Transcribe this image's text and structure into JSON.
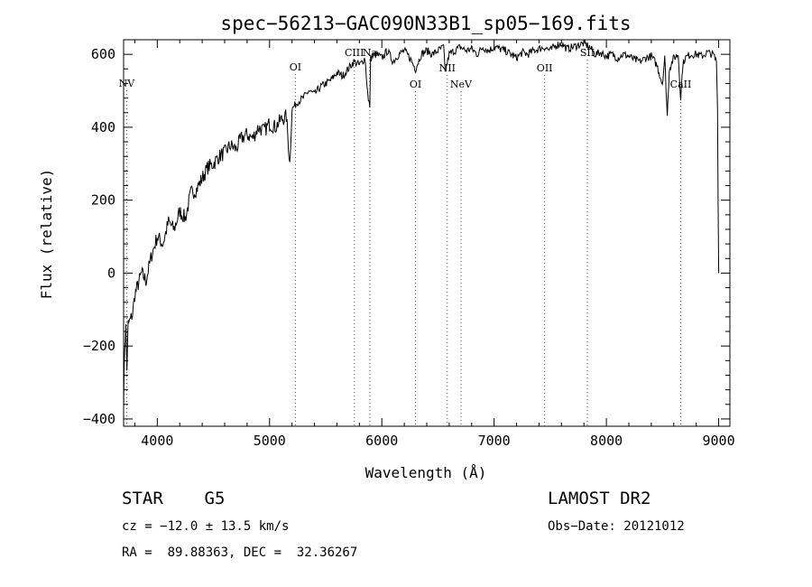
{
  "chart_data": {
    "type": "line",
    "title": "spec−56213−GAC090N33B1_sp05−169.fits",
    "xlabel": "Wavelength (Å)",
    "ylabel": "Flux (relative)",
    "xlim": [
      3700,
      9100
    ],
    "ylim": [
      -420,
      640
    ],
    "x_ticks": [
      4000,
      5000,
      6000,
      7000,
      8000,
      9000
    ],
    "y_ticks": [
      -400,
      -200,
      0,
      200,
      400,
      600
    ],
    "y_tick_labels": [
      "−400",
      "−200",
      "0",
      "200",
      "400",
      "600"
    ],
    "grid": false,
    "series": [
      {
        "x": [
          3700,
          3710,
          3720,
          3730,
          3740,
          3760,
          3780,
          3800,
          3830,
          3860,
          3900,
          3950,
          4000,
          4050,
          4100,
          4150,
          4200,
          4250,
          4300,
          4350,
          4400,
          4450,
          4500,
          4550,
          4600,
          4650,
          4700,
          4750,
          4800,
          4850,
          4900,
          4950,
          5000,
          5050,
          5100,
          5150,
          5180,
          5200,
          5250,
          5300,
          5350,
          5400,
          5450,
          5500,
          5550,
          5600,
          5650,
          5700,
          5750,
          5800,
          5850,
          5880,
          5893,
          5900,
          5950,
          6000,
          6050,
          6100,
          6150,
          6200,
          6250,
          6300,
          6350,
          6400,
          6450,
          6500,
          6550,
          6563,
          6600,
          6650,
          6700,
          6750,
          6800,
          6850,
          6900,
          6950,
          7000,
          7050,
          7100,
          7150,
          7200,
          7250,
          7300,
          7350,
          7400,
          7450,
          7500,
          7550,
          7600,
          7650,
          7700,
          7750,
          7800,
          7850,
          7900,
          7950,
          8000,
          8050,
          8100,
          8150,
          8200,
          8250,
          8300,
          8350,
          8400,
          8450,
          8498,
          8520,
          8542,
          8560,
          8600,
          8640,
          8662,
          8680,
          8700,
          8750,
          8800,
          8850,
          8900,
          8950,
          8980,
          8990,
          8995,
          9000
        ],
        "y": [
          -350,
          -200,
          -150,
          -260,
          -140,
          -130,
          -110,
          -60,
          -30,
          0,
          -20,
          50,
          100,
          80,
          140,
          120,
          170,
          150,
          220,
          230,
          260,
          290,
          300,
          320,
          330,
          350,
          340,
          370,
          380,
          370,
          400,
          390,
          410,
          400,
          420,
          430,
          300,
          450,
          470,
          480,
          500,
          490,
          510,
          520,
          530,
          550,
          540,
          560,
          580,
          570,
          590,
          470,
          460,
          590,
          600,
          590,
          610,
          580,
          600,
          610,
          590,
          560,
          600,
          610,
          600,
          610,
          620,
          550,
          600,
          610,
          620,
          610,
          615,
          600,
          620,
          610,
          620,
          615,
          610,
          600,
          590,
          605,
          600,
          610,
          615,
          620,
          610,
          625,
          630,
          615,
          620,
          625,
          630,
          620,
          600,
          605,
          595,
          600,
          590,
          600,
          595,
          585,
          580,
          590,
          595,
          570,
          520,
          590,
          430,
          560,
          590,
          600,
          480,
          570,
          590,
          600,
          600,
          595,
          605,
          600,
          580,
          450,
          200,
          0
        ]
      }
    ],
    "lines": [
      {
        "x": 3727,
        "label": "NV"
      },
      {
        "x": 5230,
        "label": "OI"
      },
      {
        "x": 5755,
        "label": "CIII"
      },
      {
        "x": 5893,
        "label": "Na"
      },
      {
        "x": 6300,
        "label": "OI"
      },
      {
        "x": 6583,
        "label": "NII"
      },
      {
        "x": 6705,
        "label": "NeV"
      },
      {
        "x": 7450,
        "label": "OII"
      },
      {
        "x": 7830,
        "label": "SII"
      },
      {
        "x": 8662,
        "label": "CaII"
      }
    ]
  },
  "info": {
    "class": "STAR    G5",
    "survey": "LAMOST DR2",
    "cz": "cz = −12.0 ± 13.5 km/s",
    "obs_date": "Obs−Date: 20121012",
    "coords": "RA =  89.88363, DEC =  32.36267"
  }
}
